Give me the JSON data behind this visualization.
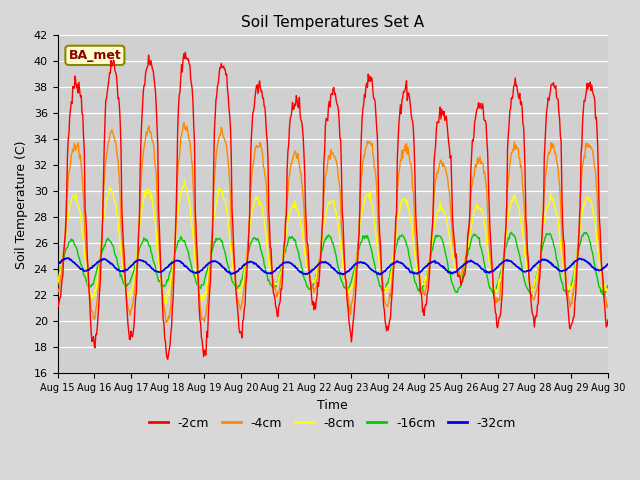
{
  "title": "Soil Temperatures Set A",
  "xlabel": "Time",
  "ylabel": "Soil Temperature (C)",
  "ylim": [
    16,
    42
  ],
  "yticks": [
    16,
    18,
    20,
    22,
    24,
    26,
    28,
    30,
    32,
    34,
    36,
    38,
    40,
    42
  ],
  "x_labels": [
    "Aug 15",
    "Aug 16",
    "Aug 17",
    "Aug 18",
    "Aug 19",
    "Aug 20",
    "Aug 21",
    "Aug 22",
    "Aug 23",
    "Aug 24",
    "Aug 25",
    "Aug 26",
    "Aug 27",
    "Aug 28",
    "Aug 29",
    "Aug 30"
  ],
  "colors": {
    "-2cm": "#ff0000",
    "-4cm": "#ff8800",
    "-8cm": "#ffff00",
    "-16cm": "#00cc00",
    "-32cm": "#0000ee"
  },
  "legend_label": "BA_met",
  "legend_box_facecolor": "#ffffcc",
  "legend_box_edgecolor": "#888800",
  "fig_facecolor": "#d8d8d8",
  "plot_facecolor": "#d0d0d0",
  "grid_color": "#ffffff",
  "figsize": [
    6.4,
    4.8
  ],
  "dpi": 100
}
